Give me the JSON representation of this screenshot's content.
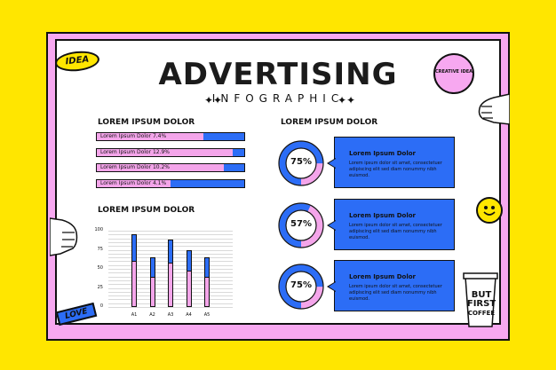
{
  "header": {
    "title": "ADVERTISING",
    "subtitle": "INFOGRAPHIC"
  },
  "stickers": {
    "idea": "IDEA",
    "love": "LOVE",
    "badge_text": "CREATIVE IDEA",
    "cup_lines": [
      "BUT",
      "FIRST",
      "COFFEE"
    ]
  },
  "progress_section": {
    "heading": "LOREM IPSUM DOLOR",
    "items": [
      {
        "label": "Lorem Ipsum Dolor 7.4%",
        "fill_percent": 72
      },
      {
        "label": "Lorem Ipsum Dolor 12.9%",
        "fill_percent": 92
      },
      {
        "label": "Lorem Ipsum Dolor 10.2%",
        "fill_percent": 86
      },
      {
        "label": "Lorem Ipsum Dolor 4.1%",
        "fill_percent": 50
      }
    ]
  },
  "bar_chart_section": {
    "heading": "LOREM IPSUM DOLOR"
  },
  "chart_data": {
    "type": "bar",
    "categories": [
      "A1",
      "A2",
      "A3",
      "A4",
      "A5"
    ],
    "series": [
      {
        "values": [
          95,
          65,
          88,
          75,
          65
        ]
      },
      {
        "values": [
          60,
          40,
          58,
          48,
          40
        ]
      }
    ],
    "y_ticks": [
      "100",
      "75",
      "50",
      "25",
      "0"
    ],
    "ylim": [
      0,
      100
    ],
    "colors": [
      "#2c6df6",
      "#f4a5ea"
    ]
  },
  "donut_section": {
    "heading": "LOREM IPSUM DOLOR",
    "items": [
      {
        "percent_label": "75%",
        "percent": 75,
        "title": "Lorem Ipsum Dolor",
        "text": "Lorem ipsum dolor sit amet, consectetuer adipiscing elit sed diam nonummy nibh euismod."
      },
      {
        "percent_label": "57%",
        "percent": 57,
        "title": "Lorem Ipsum Dolor",
        "text": "Lorem ipsum dolor sit amet, consectetuer adipiscing elit sed diam nonummy nibh euismod."
      },
      {
        "percent_label": "75%",
        "percent": 75,
        "title": "Lorem Ipsum Dolor",
        "text": "Lorem ipsum dolor sit amet, consectetuer adipiscing elit sed diam nonummy nibh euismod."
      }
    ]
  },
  "colors": {
    "background": "#ffe600",
    "frame_pink": "#f7a8f0",
    "blue": "#2c6df6",
    "pink_fill": "#f4a5ea"
  }
}
